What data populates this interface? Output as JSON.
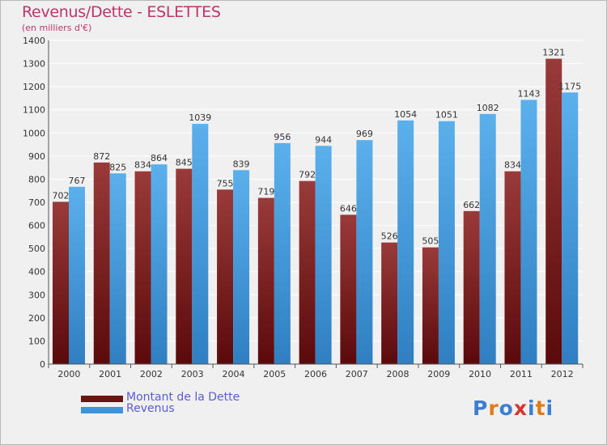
{
  "header": {
    "title": "Revenus/Dette - ESLETTES",
    "subtitle": "(en milliers d'€)"
  },
  "colors": {
    "title": "#c0336a",
    "dette_light": "#9a3a3a",
    "dette_dark": "#5a0a0a",
    "revenus_light": "#5bb0ec",
    "revenus_dark": "#2f7fc2",
    "grid": "#ffffff",
    "legend_text": "#5b5bd6"
  },
  "legend": {
    "items": [
      {
        "label": "Montant de la Dette",
        "color": "#6b1414"
      },
      {
        "label": "Revenus",
        "color": "#3d94d8"
      }
    ]
  },
  "logo": {
    "text": "Proxiti",
    "letter_colors": [
      "#3b7fd0",
      "#e07b1a",
      "#3b7fd0",
      "#d9342b",
      "#3b7fd0",
      "#e07b1a",
      "#3b7fd0"
    ]
  },
  "chart_data": {
    "type": "bar",
    "categories": [
      "2000",
      "2001",
      "2002",
      "2003",
      "2004",
      "2005",
      "2006",
      "2007",
      "2008",
      "2009",
      "2010",
      "2011",
      "2012"
    ],
    "series": [
      {
        "name": "Montant de la Dette",
        "values": [
          702,
          872,
          834,
          845,
          755,
          719,
          792,
          646,
          526,
          505,
          662,
          834,
          1321
        ]
      },
      {
        "name": "Revenus",
        "values": [
          767,
          825,
          864,
          1039,
          839,
          956,
          944,
          969,
          1054,
          1051,
          1082,
          1143,
          1175
        ]
      }
    ],
    "yticks": [
      0,
      100,
      200,
      300,
      400,
      500,
      600,
      700,
      800,
      900,
      1000,
      1100,
      1200,
      1300,
      1400
    ],
    "ylim": [
      0,
      1400
    ],
    "grid": true
  }
}
